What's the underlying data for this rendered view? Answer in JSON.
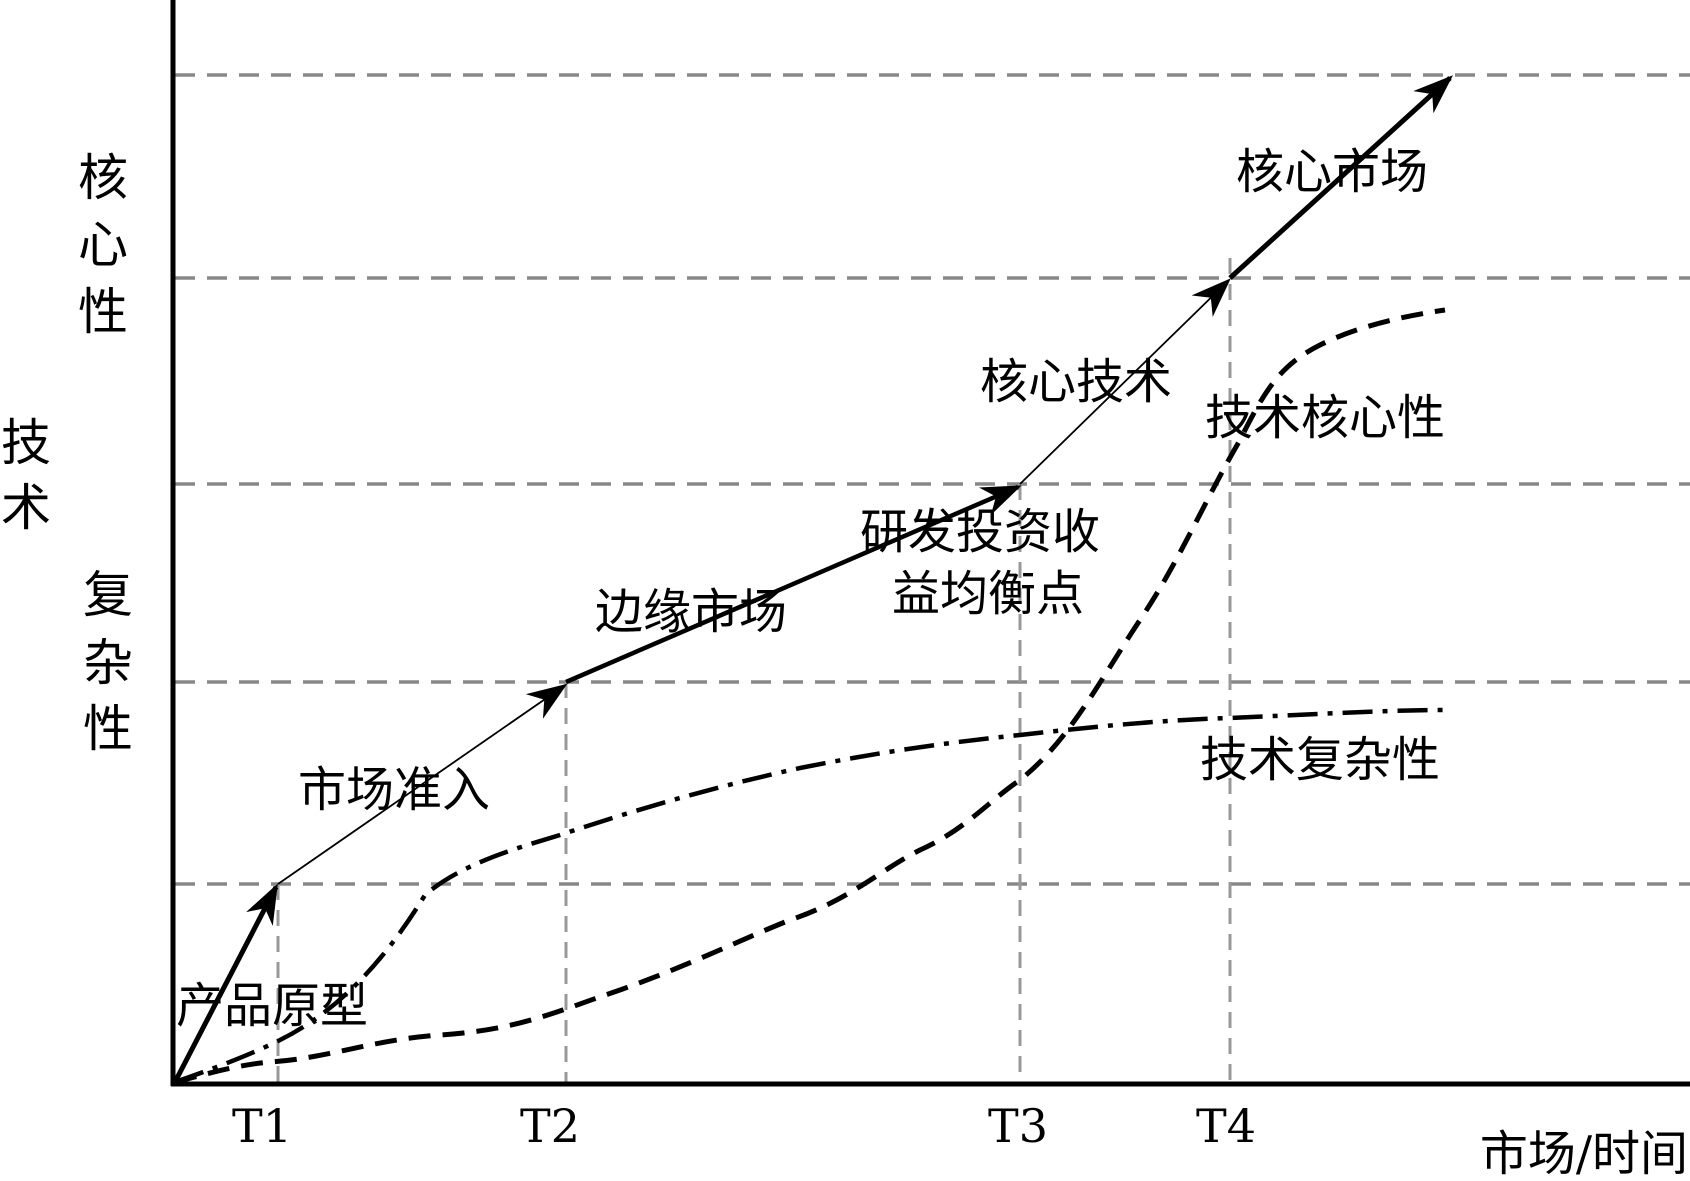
{
  "diagram": {
    "y_axis_title": [
      "技",
      "术"
    ],
    "y_axis_upper": [
      "核",
      "心",
      "性"
    ],
    "y_axis_lower": [
      "复",
      "杂",
      "性"
    ],
    "x_axis_title": "市场/时间",
    "ticks": [
      "T1",
      "T2",
      "T3",
      "T4"
    ],
    "stages": {
      "product_prototype": "产品原型",
      "market_entry": "市场准入",
      "edge_market": "边缘市场",
      "rd_balance_line1": "研发投资收",
      "rd_balance_line2": "益均衡点",
      "core_technology": "核心技术",
      "core_market": "核心市场"
    },
    "curves": {
      "technology_coreness": "技术核心性",
      "technology_complexity": "技术复杂性"
    }
  }
}
